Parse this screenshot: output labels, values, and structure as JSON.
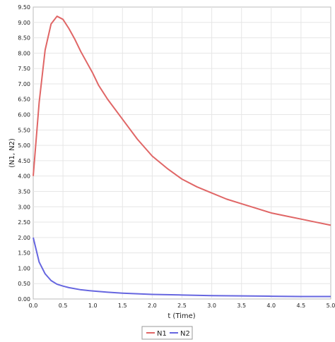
{
  "chart_data": {
    "type": "line",
    "xlabel": "t (Time)",
    "ylabel": "(N1, N2)",
    "xlim": [
      0.0,
      5.0
    ],
    "ylim": [
      0.0,
      9.5
    ],
    "x_ticks": [
      "0.0",
      "0.5",
      "1.0",
      "1.5",
      "2.0",
      "2.5",
      "3.0",
      "3.5",
      "4.0",
      "4.5",
      "5.0"
    ],
    "y_ticks": [
      "0.00",
      "0.50",
      "1.00",
      "1.50",
      "2.00",
      "2.50",
      "3.00",
      "3.50",
      "4.00",
      "4.50",
      "5.00",
      "5.50",
      "6.00",
      "6.50",
      "7.00",
      "7.50",
      "8.00",
      "8.50",
      "9.00",
      "9.50"
    ],
    "grid": true,
    "legend_position": "bottom-center",
    "series": [
      {
        "name": "N1",
        "color": "#e06666",
        "points": [
          [
            0.0,
            4.0
          ],
          [
            0.1,
            6.4
          ],
          [
            0.2,
            8.1
          ],
          [
            0.3,
            8.95
          ],
          [
            0.4,
            9.2
          ],
          [
            0.5,
            9.1
          ],
          [
            0.6,
            8.8
          ],
          [
            0.7,
            8.45
          ],
          [
            0.8,
            8.05
          ],
          [
            0.9,
            7.7
          ],
          [
            1.0,
            7.35
          ],
          [
            1.1,
            6.95
          ],
          [
            1.25,
            6.5
          ],
          [
            1.5,
            5.85
          ],
          [
            1.75,
            5.2
          ],
          [
            2.0,
            4.65
          ],
          [
            2.25,
            4.25
          ],
          [
            2.5,
            3.9
          ],
          [
            2.75,
            3.65
          ],
          [
            3.0,
            3.45
          ],
          [
            3.25,
            3.25
          ],
          [
            3.5,
            3.1
          ],
          [
            3.75,
            2.95
          ],
          [
            4.0,
            2.8
          ],
          [
            4.25,
            2.7
          ],
          [
            4.5,
            2.6
          ],
          [
            4.75,
            2.5
          ],
          [
            5.0,
            2.4
          ]
        ]
      },
      {
        "name": "N2",
        "color": "#6666e0",
        "points": [
          [
            0.0,
            2.0
          ],
          [
            0.05,
            1.6
          ],
          [
            0.1,
            1.2
          ],
          [
            0.2,
            0.82
          ],
          [
            0.3,
            0.6
          ],
          [
            0.4,
            0.48
          ],
          [
            0.5,
            0.42
          ],
          [
            0.6,
            0.37
          ],
          [
            0.8,
            0.3
          ],
          [
            1.0,
            0.26
          ],
          [
            1.25,
            0.22
          ],
          [
            1.5,
            0.19
          ],
          [
            1.75,
            0.17
          ],
          [
            2.0,
            0.15
          ],
          [
            2.5,
            0.13
          ],
          [
            3.0,
            0.11
          ],
          [
            3.5,
            0.1
          ],
          [
            4.0,
            0.09
          ],
          [
            4.5,
            0.08
          ],
          [
            5.0,
            0.08
          ]
        ]
      }
    ]
  }
}
